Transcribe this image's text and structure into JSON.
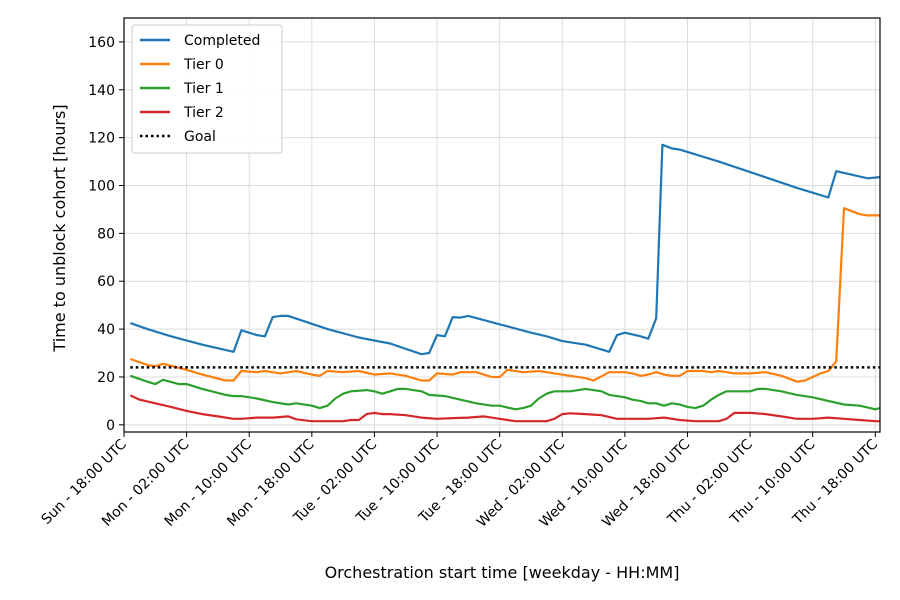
{
  "chart_data": {
    "type": "line",
    "xlabel": "Orchestration start time [weekday - HH:MM]",
    "ylabel": "Time to unblock cohort [hours]",
    "x_unit": "hours since Sun - 18:00 UTC",
    "xlim": [
      0,
      96.6
    ],
    "ylim": [
      -3,
      170
    ],
    "yticks": [
      0,
      20,
      40,
      60,
      80,
      100,
      120,
      140,
      160
    ],
    "xticks": [
      {
        "value": 0,
        "label": "Sun - 18:00 UTC"
      },
      {
        "value": 8,
        "label": "Mon - 02:00 UTC"
      },
      {
        "value": 16,
        "label": "Mon - 10:00 UTC"
      },
      {
        "value": 24,
        "label": "Mon - 18:00 UTC"
      },
      {
        "value": 32,
        "label": "Tue - 02:00 UTC"
      },
      {
        "value": 40,
        "label": "Tue - 10:00 UTC"
      },
      {
        "value": 48,
        "label": "Tue - 18:00 UTC"
      },
      {
        "value": 56,
        "label": "Wed - 02:00 UTC"
      },
      {
        "value": 64,
        "label": "Wed - 10:00 UTC"
      },
      {
        "value": 72,
        "label": "Wed - 18:00 UTC"
      },
      {
        "value": 80,
        "label": "Thu - 02:00 UTC"
      },
      {
        "value": 88,
        "label": "Thu - 10:00 UTC"
      },
      {
        "value": 96,
        "label": "Thu - 18:00 UTC"
      }
    ],
    "grid": true,
    "legend_position": "top-left",
    "series": [
      {
        "name": "Completed",
        "color": "#1f77b4",
        "style": "solid",
        "points": [
          [
            0.8,
            42.5
          ],
          [
            3,
            40
          ],
          [
            6,
            37
          ],
          [
            10,
            33.5
          ],
          [
            14,
            30.5
          ],
          [
            15,
            39.5
          ],
          [
            17,
            37.5
          ],
          [
            18,
            37
          ],
          [
            19,
            45
          ],
          [
            20,
            45.5
          ],
          [
            21,
            45.5
          ],
          [
            26,
            40
          ],
          [
            30,
            36.5
          ],
          [
            34,
            34
          ],
          [
            38,
            29.5
          ],
          [
            39,
            30
          ],
          [
            40,
            37.5
          ],
          [
            41,
            37
          ],
          [
            42,
            45
          ],
          [
            43,
            44.8
          ],
          [
            44,
            45.5
          ],
          [
            48,
            42
          ],
          [
            52,
            38.5
          ],
          [
            54,
            37
          ],
          [
            56,
            35
          ],
          [
            59,
            33.5
          ],
          [
            62,
            30.5
          ],
          [
            63,
            37.5
          ],
          [
            64,
            38.5
          ],
          [
            66,
            37
          ],
          [
            67,
            36
          ],
          [
            68,
            44.5
          ],
          [
            68.8,
            117
          ],
          [
            70,
            115.5
          ],
          [
            71,
            115
          ],
          [
            76,
            110
          ],
          [
            81,
            104.5
          ],
          [
            86,
            99
          ],
          [
            88,
            97
          ],
          [
            90,
            95
          ],
          [
            91,
            106
          ],
          [
            93,
            104.5
          ],
          [
            95,
            103
          ],
          [
            96.6,
            103.5
          ]
        ]
      },
      {
        "name": "Tier 0",
        "color": "#ff7f0e",
        "style": "solid",
        "points": [
          [
            0.8,
            27.5
          ],
          [
            3,
            25
          ],
          [
            4,
            24.5
          ],
          [
            5,
            25.5
          ],
          [
            8,
            23
          ],
          [
            10,
            21
          ],
          [
            13,
            18.5
          ],
          [
            14,
            18.5
          ],
          [
            15,
            22.5
          ],
          [
            17,
            22
          ],
          [
            18,
            22.5
          ],
          [
            20,
            21.5
          ],
          [
            22,
            22.5
          ],
          [
            24,
            21
          ],
          [
            25,
            20.5
          ],
          [
            26,
            22.5
          ],
          [
            28,
            22
          ],
          [
            30,
            22.5
          ],
          [
            32,
            21
          ],
          [
            34,
            21.5
          ],
          [
            36,
            20.5
          ],
          [
            38,
            18.5
          ],
          [
            39,
            18.5
          ],
          [
            40,
            21.5
          ],
          [
            42,
            21
          ],
          [
            43,
            22
          ],
          [
            45,
            22
          ],
          [
            47,
            20
          ],
          [
            48,
            20
          ],
          [
            49,
            23
          ],
          [
            51,
            22
          ],
          [
            53,
            22.5
          ],
          [
            55,
            21.5
          ],
          [
            57,
            20.5
          ],
          [
            59,
            19.5
          ],
          [
            60,
            18.5
          ],
          [
            62,
            22
          ],
          [
            64,
            22
          ],
          [
            65,
            21.5
          ],
          [
            66,
            20.5
          ],
          [
            67,
            21
          ],
          [
            68,
            22
          ],
          [
            69,
            21
          ],
          [
            70,
            20.5
          ],
          [
            71,
            20.5
          ],
          [
            72,
            22.5
          ],
          [
            74,
            22.5
          ],
          [
            75,
            22
          ],
          [
            76,
            22.5
          ],
          [
            77,
            22
          ],
          [
            78,
            21.5
          ],
          [
            80,
            21.5
          ],
          [
            82,
            22
          ],
          [
            84,
            20.5
          ],
          [
            86,
            18
          ],
          [
            87,
            18.5
          ],
          [
            88,
            20
          ],
          [
            89,
            21.5
          ],
          [
            90,
            22.5
          ],
          [
            91,
            26.5
          ],
          [
            92,
            90.5
          ],
          [
            94,
            88
          ],
          [
            95,
            87.5
          ],
          [
            96.6,
            87.5
          ]
        ]
      },
      {
        "name": "Tier 1",
        "color": "#2ca02c",
        "style": "solid",
        "points": [
          [
            0.8,
            20.5
          ],
          [
            3,
            18
          ],
          [
            4,
            17
          ],
          [
            5,
            18.8
          ],
          [
            7,
            17
          ],
          [
            8,
            17
          ],
          [
            10,
            15
          ],
          [
            13,
            12.5
          ],
          [
            14,
            12
          ],
          [
            15,
            12
          ],
          [
            17,
            11
          ],
          [
            19,
            9.5
          ],
          [
            21,
            8.5
          ],
          [
            22,
            9
          ],
          [
            24,
            8
          ],
          [
            25,
            7
          ],
          [
            26,
            8
          ],
          [
            27,
            11
          ],
          [
            28,
            13
          ],
          [
            29,
            14
          ],
          [
            31,
            14.5
          ],
          [
            32,
            14
          ],
          [
            33,
            13
          ],
          [
            34,
            14
          ],
          [
            35,
            15
          ],
          [
            36,
            15
          ],
          [
            38,
            14
          ],
          [
            39,
            12.5
          ],
          [
            41,
            12
          ],
          [
            43,
            10.5
          ],
          [
            45,
            9
          ],
          [
            47,
            8
          ],
          [
            48,
            8
          ],
          [
            50,
            6.5
          ],
          [
            51,
            7
          ],
          [
            52,
            8
          ],
          [
            53,
            11
          ],
          [
            54,
            13
          ],
          [
            55,
            14
          ],
          [
            57,
            14
          ],
          [
            59,
            15
          ],
          [
            61,
            14
          ],
          [
            62,
            12.5
          ],
          [
            63,
            12
          ],
          [
            64,
            11.5
          ],
          [
            65,
            10.5
          ],
          [
            66,
            10
          ],
          [
            67,
            9
          ],
          [
            68,
            9
          ],
          [
            69,
            8
          ],
          [
            70,
            9
          ],
          [
            71,
            8.5
          ],
          [
            72,
            7.5
          ],
          [
            73,
            7
          ],
          [
            74,
            8
          ],
          [
            75,
            10.5
          ],
          [
            76,
            12.5
          ],
          [
            77,
            14
          ],
          [
            79,
            14
          ],
          [
            80,
            14
          ],
          [
            81,
            15
          ],
          [
            82,
            15
          ],
          [
            84,
            14
          ],
          [
            86,
            12.5
          ],
          [
            88,
            11.5
          ],
          [
            90,
            10
          ],
          [
            92,
            8.5
          ],
          [
            94,
            8
          ],
          [
            96,
            6.5
          ],
          [
            96.6,
            7
          ]
        ]
      },
      {
        "name": "Tier 2",
        "color": "#d62728",
        "style": "solid",
        "points": [
          [
            0.8,
            12.3
          ],
          [
            2,
            10.5
          ],
          [
            4,
            9
          ],
          [
            6,
            7.5
          ],
          [
            8,
            5.8
          ],
          [
            10,
            4.5
          ],
          [
            12,
            3.5
          ],
          [
            14,
            2.5
          ],
          [
            15,
            2.5
          ],
          [
            17,
            3
          ],
          [
            19,
            3
          ],
          [
            21,
            3.5
          ],
          [
            22,
            2.3
          ],
          [
            24,
            1.5
          ],
          [
            26,
            1.5
          ],
          [
            28,
            1.5
          ],
          [
            29,
            2
          ],
          [
            30,
            2
          ],
          [
            31,
            4.5
          ],
          [
            32,
            5
          ],
          [
            33,
            4.5
          ],
          [
            34,
            4.5
          ],
          [
            36,
            4
          ],
          [
            38,
            3
          ],
          [
            40,
            2.5
          ],
          [
            42,
            2.8
          ],
          [
            44,
            3
          ],
          [
            46,
            3.5
          ],
          [
            48,
            2.5
          ],
          [
            50,
            1.5
          ],
          [
            52,
            1.5
          ],
          [
            54,
            1.5
          ],
          [
            55,
            2.5
          ],
          [
            56,
            4.5
          ],
          [
            57,
            4.8
          ],
          [
            59,
            4.5
          ],
          [
            61,
            4
          ],
          [
            63,
            2.5
          ],
          [
            65,
            2.5
          ],
          [
            67,
            2.5
          ],
          [
            69,
            3
          ],
          [
            71,
            2
          ],
          [
            73,
            1.5
          ],
          [
            75,
            1.5
          ],
          [
            76,
            1.5
          ],
          [
            77,
            2.5
          ],
          [
            78,
            5
          ],
          [
            80,
            5
          ],
          [
            82,
            4.5
          ],
          [
            84,
            3.5
          ],
          [
            86,
            2.5
          ],
          [
            88,
            2.5
          ],
          [
            90,
            3
          ],
          [
            92,
            2.5
          ],
          [
            94,
            2
          ],
          [
            96,
            1.5
          ],
          [
            96.6,
            1.5
          ]
        ]
      },
      {
        "name": "Goal",
        "color": "#000000",
        "style": "dotted",
        "points": [
          [
            0.8,
            24
          ],
          [
            96.6,
            24
          ]
        ]
      }
    ]
  }
}
